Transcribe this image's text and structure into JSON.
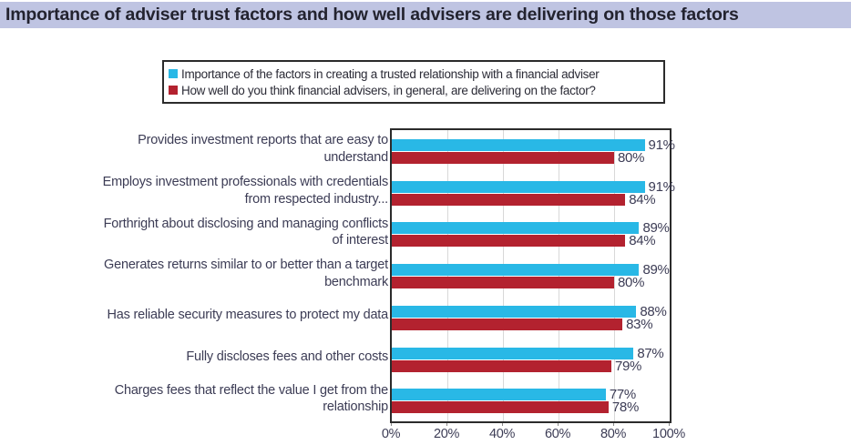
{
  "title": "Importance of adviser trust factors and how well advisers are delivering on those factors",
  "colors": {
    "importance_series": "#29B8E6",
    "delivery_series": "#B3222F",
    "title_bar_bg": "#BFC4E2",
    "title_text": "#23232F",
    "label_text": "#3C3C55",
    "gridline": "#D8D8D8",
    "plot_border": "#2B2B2B"
  },
  "legend": {
    "items": [
      {
        "label": "Importance of the factors in creating a trusted relationship with a financial adviser",
        "color": "#29B8E6"
      },
      {
        "label": "How well do you think financial advisers, in general, are delivering on the factor?",
        "color": "#B3222F"
      }
    ]
  },
  "chart_data": {
    "type": "bar",
    "orientation": "horizontal",
    "title": "Importance of adviser trust factors and how well advisers are delivering on those factors",
    "categories": [
      "Provides investment reports that are easy to understand",
      "Employs investment professionals with credentials from respected industry...",
      "Forthright about disclosing and managing conflicts of interest",
      "Generates returns similar to or better than a target benchmark",
      "Has reliable security measures to protect my data",
      "Fully discloses fees and other costs",
      "Charges fees that reflect the value I get from the relationship"
    ],
    "series": [
      {
        "name": "Importance of the factors in creating a trusted relationship with a financial adviser",
        "color": "#29B8E6",
        "values": [
          91,
          91,
          89,
          89,
          88,
          87,
          77
        ]
      },
      {
        "name": "How well do you think financial advisers, in general, are delivering on the factor?",
        "color": "#B3222F",
        "values": [
          80,
          84,
          84,
          80,
          83,
          79,
          78
        ]
      }
    ],
    "value_suffix": "%",
    "x_tick_labels": [
      "0%",
      "20%",
      "40%",
      "60%",
      "80%",
      "100%"
    ],
    "xlim": [
      0,
      100
    ],
    "grid": true,
    "legend_position": "top"
  }
}
